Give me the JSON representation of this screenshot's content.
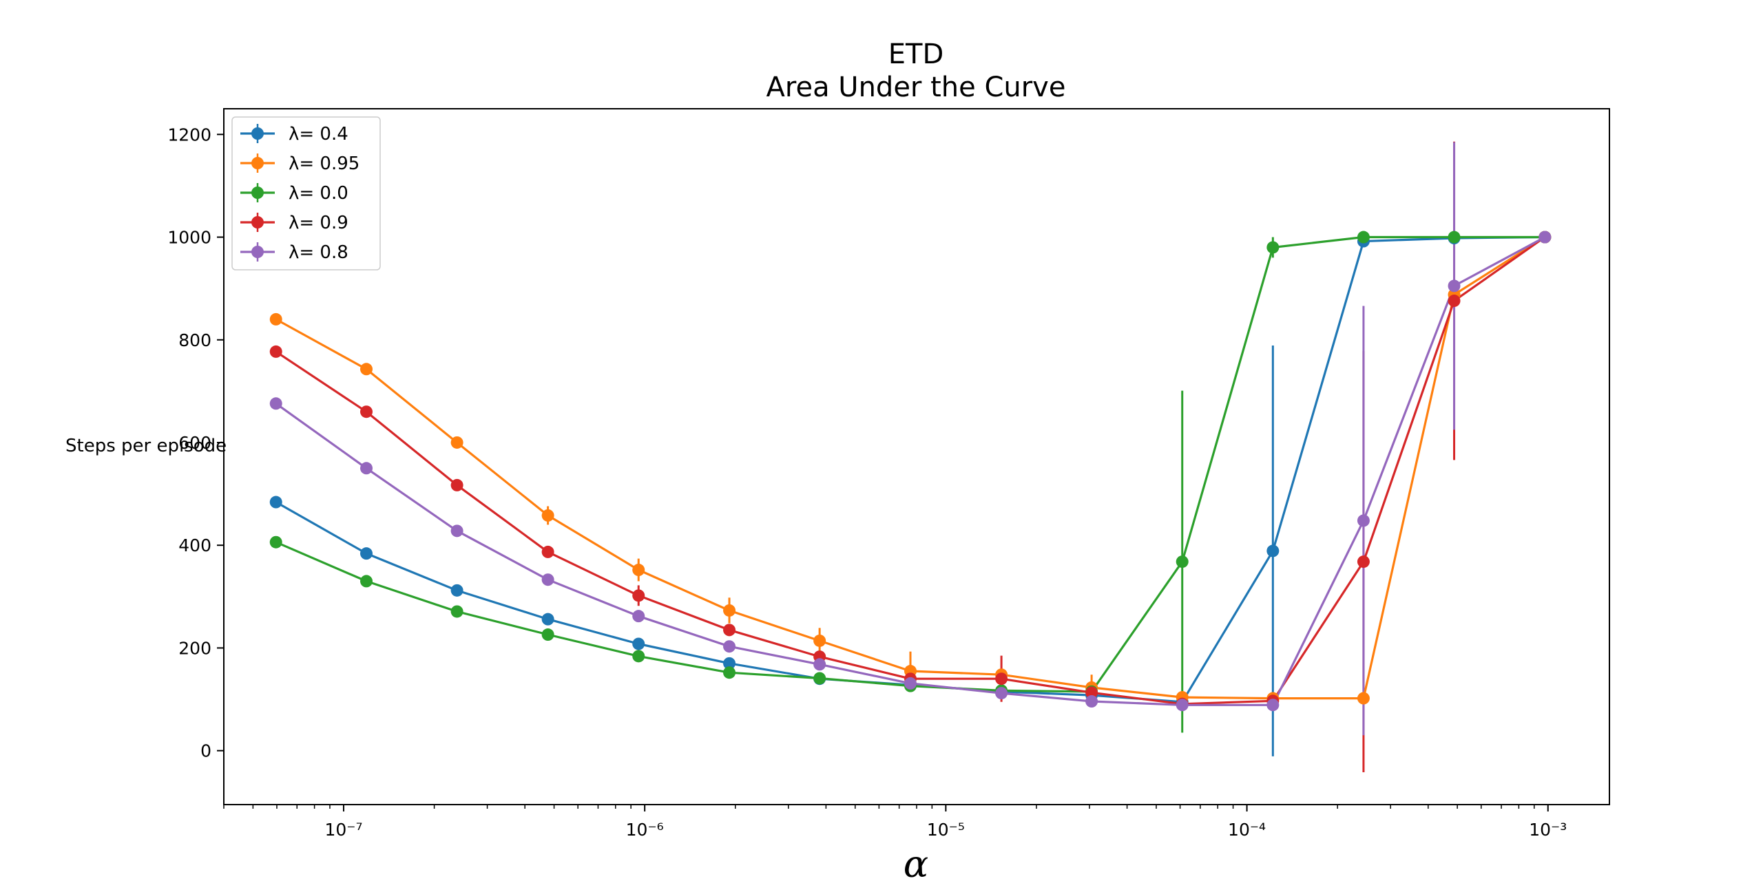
{
  "chart_data": {
    "type": "line",
    "title": "ETD",
    "subtitle": "Area Under the Curve",
    "xlabel": "α",
    "ylabel": "Steps per episode",
    "x_scale": "log",
    "xlim": [
      4e-08,
      0.0016
    ],
    "ylim": [
      -105,
      1250
    ],
    "yticks": [
      0,
      200,
      400,
      600,
      800,
      1000,
      1200
    ],
    "xticks": [
      {
        "value": 1e-07,
        "label": "10⁻⁷"
      },
      {
        "value": 1e-06,
        "label": "10⁻⁶"
      },
      {
        "value": 1e-05,
        "label": "10⁻⁵"
      },
      {
        "value": 0.0001,
        "label": "10⁻⁴"
      },
      {
        "value": 0.001,
        "label": "10⁻³"
      }
    ],
    "grid": false,
    "legend_position": "top-left",
    "x": [
      5.96e-08,
      1.19e-07,
      2.38e-07,
      4.77e-07,
      9.54e-07,
      1.91e-06,
      3.81e-06,
      7.63e-06,
      1.53e-05,
      3.05e-05,
      6.1e-05,
      0.000122,
      0.000244,
      0.000488,
      0.000977
    ],
    "series": [
      {
        "name": "λ= 0.4",
        "color": "#1f77b4",
        "values": [
          484,
          384,
          312,
          256,
          208,
          170,
          140,
          128,
          115,
          108,
          95,
          389,
          992,
          998,
          1000
        ],
        "errors": [
          0,
          0,
          0,
          0,
          0,
          0,
          0,
          0,
          0,
          0,
          0,
          400,
          0,
          0,
          0
        ]
      },
      {
        "name": "λ= 0.95",
        "color": "#ff7f0e",
        "values": [
          840,
          743,
          600,
          458,
          352,
          273,
          214,
          155,
          148,
          123,
          104,
          102,
          102,
          888,
          1000
        ],
        "errors": [
          0,
          0,
          0,
          18,
          22,
          25,
          25,
          38,
          12,
          25,
          0,
          0,
          0,
          0,
          0
        ]
      },
      {
        "name": "λ= 0.0",
        "color": "#2ca02c",
        "values": [
          406,
          330,
          271,
          226,
          184,
          152,
          141,
          126,
          117,
          115,
          368,
          980,
          1000,
          1000,
          1000
        ],
        "errors": [
          0,
          0,
          0,
          0,
          0,
          0,
          0,
          0,
          0,
          0,
          333,
          20,
          0,
          0,
          0
        ]
      },
      {
        "name": "λ= 0.9",
        "color": "#d62728",
        "values": [
          777,
          660,
          517,
          387,
          302,
          235,
          183,
          140,
          140,
          113,
          91,
          97,
          368,
          876,
          1000
        ],
        "errors": [
          0,
          0,
          0,
          0,
          20,
          0,
          0,
          0,
          45,
          0,
          0,
          0,
          410,
          310,
          0
        ]
      },
      {
        "name": "λ= 0.8",
        "color": "#9467bd",
        "values": [
          676,
          550,
          428,
          333,
          262,
          203,
          168,
          131,
          112,
          96,
          89,
          89,
          448,
          905,
          1000
        ],
        "errors": [
          0,
          0,
          0,
          0,
          0,
          0,
          0,
          0,
          0,
          0,
          0,
          0,
          418,
          280,
          0
        ]
      }
    ]
  }
}
